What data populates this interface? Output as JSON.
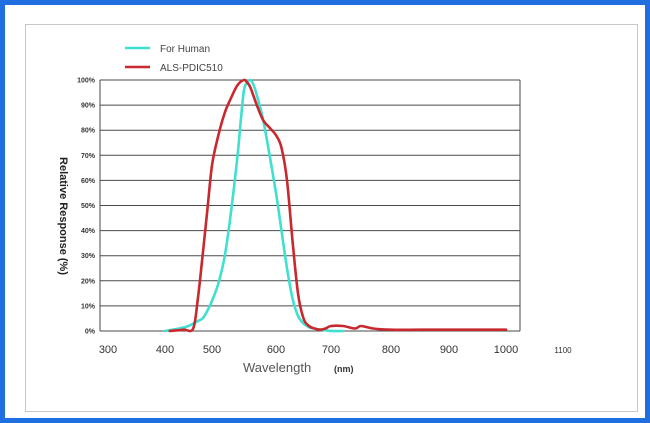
{
  "chart_data": {
    "type": "line",
    "xlabel": "Wavelength",
    "xlabel_unit": "(nm)",
    "ylabel": "Relative Response (%)",
    "xlim": [
      300,
      1100
    ],
    "ylim": [
      0,
      100
    ],
    "grid": true,
    "legend_position": "top-left",
    "x_ticks": [
      "300",
      "400",
      "500",
      "600",
      "700",
      "800",
      "900",
      "1000",
      "1100"
    ],
    "y_ticks": [
      "0%",
      "10%",
      "20%",
      "30%",
      "40%",
      "50%",
      "60%",
      "70%",
      "80%",
      "90%",
      "100%"
    ],
    "series": [
      {
        "name": "For Human",
        "color": "#40e0d0",
        "x": [
          400,
          430,
          450,
          470,
          480,
          490,
          500,
          510,
          520,
          530,
          540,
          545,
          550,
          555,
          560,
          565,
          570,
          580,
          590,
          600,
          610,
          620,
          630,
          640,
          650,
          660,
          670,
          680,
          690,
          700,
          720
        ],
        "y": [
          0,
          1,
          2,
          4,
          5,
          8,
          12,
          19,
          30,
          48,
          70,
          84,
          96,
          99,
          100,
          98,
          94,
          84,
          70,
          55,
          40,
          25,
          13,
          6,
          3,
          1.5,
          1,
          0.5,
          0.3,
          0,
          0
        ]
      },
      {
        "name": "ALS-PDIC510",
        "color": "#c8282e",
        "x": [
          410,
          440,
          460,
          470,
          480,
          490,
          500,
          510,
          520,
          530,
          540,
          550,
          555,
          560,
          570,
          580,
          590,
          600,
          610,
          620,
          630,
          640,
          650,
          660,
          670,
          680,
          690,
          700,
          720,
          740,
          750,
          770,
          800,
          850,
          900,
          1000
        ],
        "y": [
          0,
          0.5,
          1,
          13,
          30,
          48,
          66,
          78,
          87,
          93,
          98,
          100,
          99,
          97,
          90,
          84,
          81,
          78,
          73,
          60,
          36,
          15,
          5,
          2,
          1,
          0.5,
          1,
          2,
          2,
          1,
          2,
          1,
          0.5,
          0.5,
          0.5,
          0.5
        ]
      }
    ]
  }
}
